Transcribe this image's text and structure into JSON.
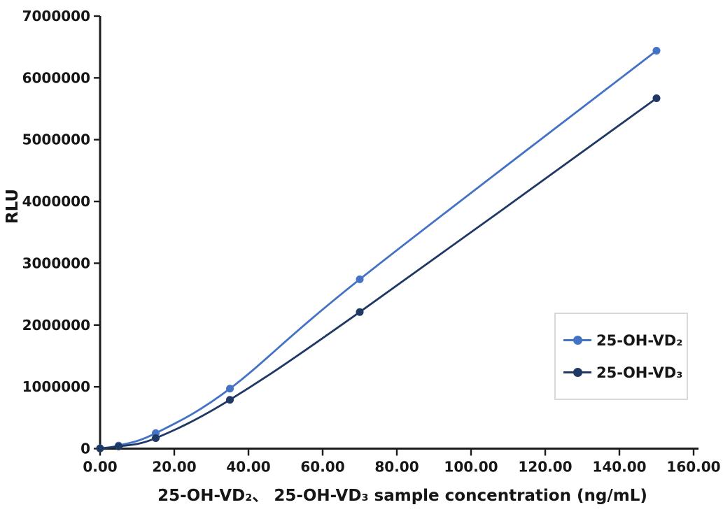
{
  "chart_data": {
    "type": "line",
    "title": "",
    "xlabel": "25-OH-VD₂、 25-OH-VD₃ sample concentration (ng/mL)",
    "ylabel": "RLU",
    "xlim": [
      0,
      160
    ],
    "ylim": [
      0,
      7000000
    ],
    "grid": false,
    "line_style": "smooth",
    "marker": "circle",
    "legend_position": "right-middle",
    "axis_color": "#1c1c1c",
    "legend_border_color": "#d8d8d8",
    "x": [
      0,
      5,
      15,
      35,
      70,
      150
    ],
    "x_ticks": [
      0,
      20,
      40,
      60,
      80,
      100,
      120,
      140,
      160
    ],
    "x_tick_labels": [
      "0.00",
      "20.00",
      "40.00",
      "60.00",
      "80.00",
      "100.00",
      "120.00",
      "140.00",
      "160.00"
    ],
    "y_ticks": [
      0,
      1000000,
      2000000,
      3000000,
      4000000,
      5000000,
      6000000,
      7000000
    ],
    "y_tick_labels": [
      "0",
      "1000000",
      "2000000",
      "3000000",
      "4000000",
      "5000000",
      "6000000",
      "7000000"
    ],
    "series": [
      {
        "name": "25-OH-VD₂",
        "color": "#4472C4",
        "values": [
          5000,
          50000,
          250000,
          970000,
          2740000,
          6440000
        ]
      },
      {
        "name": "25-OH-VD₃",
        "color": "#1F3864",
        "values": [
          3000,
          35000,
          170000,
          790000,
          2210000,
          5670000
        ]
      }
    ]
  },
  "legend": {
    "entries": [
      {
        "label": "25-OH-VD₂"
      },
      {
        "label": "25-OH-VD₃"
      }
    ]
  }
}
